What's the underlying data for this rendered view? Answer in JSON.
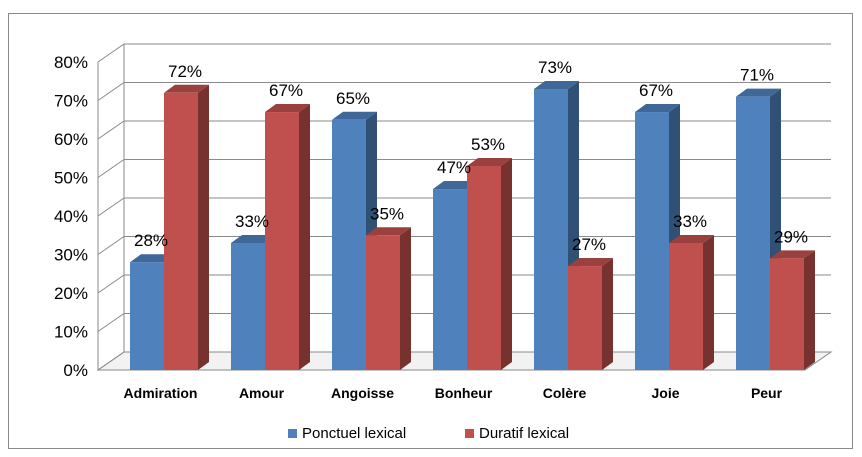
{
  "chart_data": {
    "type": "bar",
    "style": "3d-clustered",
    "categories": [
      "Admiration",
      "Amour",
      "Angoisse",
      "Bonheur",
      "Colère",
      "Joie",
      "Peur"
    ],
    "series": [
      {
        "name": "Ponctuel lexical",
        "color": "#4F81BD",
        "values": [
          28,
          33,
          65,
          47,
          73,
          67,
          71
        ],
        "labels": [
          "28%",
          "33%",
          "65%",
          "47%",
          "73%",
          "67%",
          "71%"
        ]
      },
      {
        "name": "Duratif lexical",
        "color": "#C0504D",
        "values": [
          72,
          67,
          35,
          53,
          27,
          33,
          29
        ],
        "labels": [
          "72%",
          "67%",
          "35%",
          "53%",
          "27%",
          "33%",
          "29%"
        ]
      }
    ],
    "ylim": [
      0,
      80
    ],
    "yticks": [
      "0%",
      "10%",
      "20%",
      "30%",
      "40%",
      "50%",
      "60%",
      "70%",
      "80%"
    ],
    "grid": true,
    "legend": "bottom"
  }
}
